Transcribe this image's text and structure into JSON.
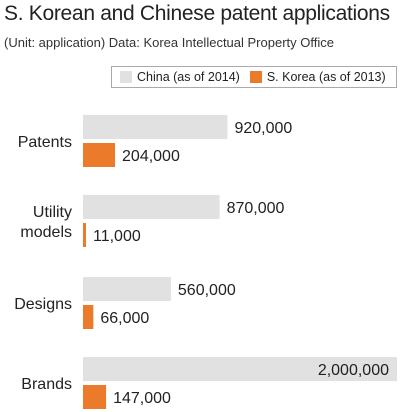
{
  "header": {
    "title": "S. Korean and Chinese patent applications",
    "subtitle": "(Unit: application) Data: Korea Intellectual Property Office"
  },
  "colors": {
    "china": "#e1e1e1",
    "korea": "#ec7a2b",
    "text": "#222222"
  },
  "chart_data": {
    "type": "bar",
    "orientation": "horizontal",
    "categories": [
      "Patents",
      "Utility\nmodels",
      "Designs",
      "Brands"
    ],
    "series": [
      {
        "name": "China (as of 2014)",
        "values": [
          920000,
          870000,
          560000,
          2000000
        ],
        "labels": [
          "920,000",
          "870,000",
          "560,000",
          "2,000,000"
        ]
      },
      {
        "name": "S. Korea (as of 2013)",
        "values": [
          204000,
          11000,
          66000,
          147000
        ],
        "labels": [
          "204,000",
          "11,000",
          "66,000",
          "147,000"
        ]
      }
    ],
    "legend": "top-right",
    "grid": false
  }
}
